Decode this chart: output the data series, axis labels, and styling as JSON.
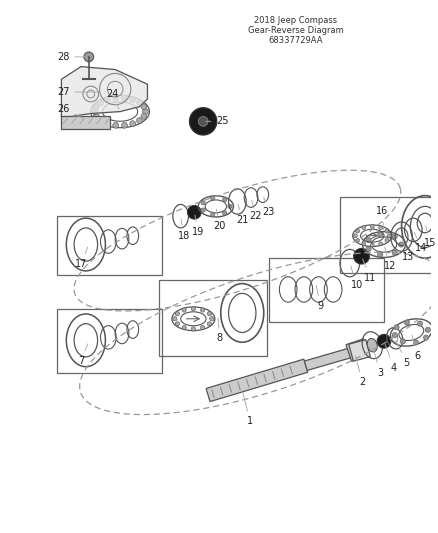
{
  "title": "2018 Jeep Compass\nGear-Reverse Diagram\n68337729AA",
  "bg_color": "#ffffff",
  "line_color": "#555555",
  "dashed_color": "#999999",
  "label_color": "#222222"
}
